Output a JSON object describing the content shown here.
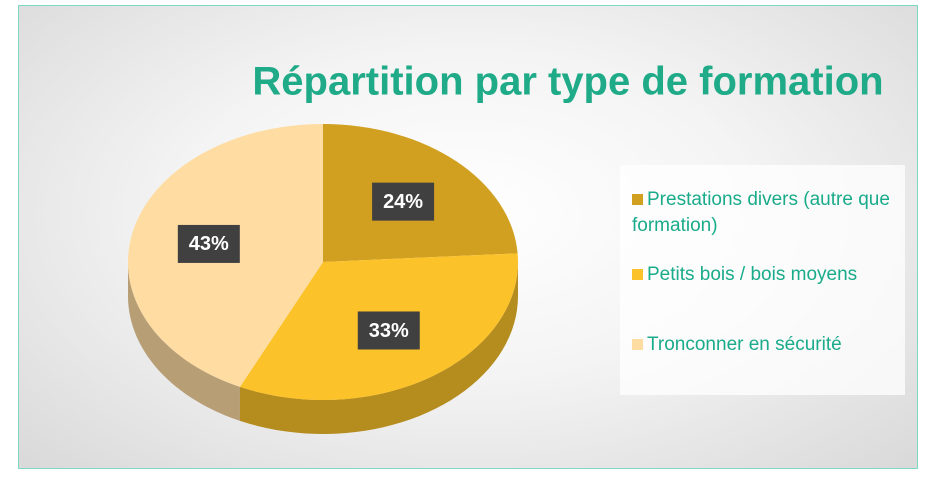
{
  "chart_data": {
    "type": "pie",
    "title": "Répartition par type de formation",
    "categories": [
      "Prestations divers (autre que formation)",
      "Petits bois / bois moyens",
      "Tronconner en sécurité"
    ],
    "values": [
      24,
      33,
      43
    ],
    "value_labels": [
      "24%",
      "33%",
      "43%"
    ],
    "colors": [
      "#d1a020",
      "#fcc229",
      "#fedca2"
    ],
    "legend": "right"
  }
}
